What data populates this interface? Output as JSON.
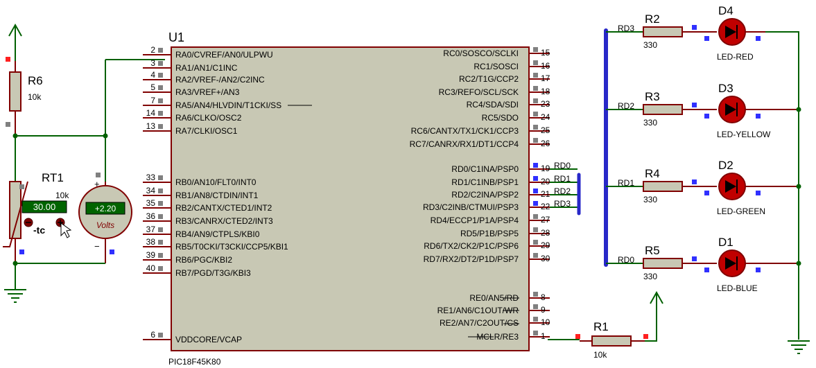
{
  "mcu": {
    "ref": "U1",
    "part": "PIC18F45K80",
    "left_pins": [
      {
        "num": "2",
        "name": "RA0/CVREF/AN0/ULPWU"
      },
      {
        "num": "3",
        "name": "RA1/AN1/C1INC"
      },
      {
        "num": "4",
        "name": "RA2/VREF-/AN2/C2INC"
      },
      {
        "num": "5",
        "name": "RA3/VREF+/AN3"
      },
      {
        "num": "7",
        "name": "RA5/AN4/HLVDIN/T1CKI/SS"
      },
      {
        "num": "14",
        "name": "RA6/CLKO/OSC2"
      },
      {
        "num": "13",
        "name": "RA7/CLKI/OSC1"
      },
      {
        "num": "33",
        "name": "RB0/AN10/FLT0/INT0"
      },
      {
        "num": "34",
        "name": "RB1/AN8/CTDIN/INT1"
      },
      {
        "num": "35",
        "name": "RB2/CANTX/CTED1/INT2"
      },
      {
        "num": "36",
        "name": "RB3/CANRX/CTED2/INT3"
      },
      {
        "num": "37",
        "name": "RB4/AN9/CTPLS/KBI0"
      },
      {
        "num": "38",
        "name": "RB5/T0CKI/T3CKI/CCP5/KBI1"
      },
      {
        "num": "39",
        "name": "RB6/PGC/KBI2"
      },
      {
        "num": "40",
        "name": "RB7/PGD/T3G/KBI3"
      },
      {
        "num": "6",
        "name": "VDDCORE/VCAP"
      }
    ],
    "right_pins": [
      {
        "num": "15",
        "name": "RC0/SOSCO/SCLKI"
      },
      {
        "num": "16",
        "name": "RC1/SOSCI"
      },
      {
        "num": "17",
        "name": "RC2/T1G/CCP2"
      },
      {
        "num": "18",
        "name": "RC3/REFO/SCL/SCK"
      },
      {
        "num": "23",
        "name": "RC4/SDA/SDI"
      },
      {
        "num": "24",
        "name": "RC5/SDO"
      },
      {
        "num": "25",
        "name": "RC6/CANTX/TX1/CK1/CCP3"
      },
      {
        "num": "26",
        "name": "RC7/CANRX/RX1/DT1/CCP4"
      },
      {
        "num": "19",
        "name": "RD0/C1INA/PSP0"
      },
      {
        "num": "20",
        "name": "RD1/C1INB/PSP1"
      },
      {
        "num": "21",
        "name": "RD2/C2INA/PSP2"
      },
      {
        "num": "22",
        "name": "RD3/C2INB/CTMUI/PSP3"
      },
      {
        "num": "27",
        "name": "RD4/ECCP1/P1A/PSP4"
      },
      {
        "num": "28",
        "name": "RD5/P1B/PSP5"
      },
      {
        "num": "29",
        "name": "RD6/TX2/CK2/P1C/PSP6"
      },
      {
        "num": "30",
        "name": "RD7/RX2/DT2/P1D/PSP7"
      },
      {
        "num": "8",
        "name": "RE0/AN5/RD"
      },
      {
        "num": "9",
        "name": "RE1/AN6/C1OUT/WR"
      },
      {
        "num": "10",
        "name": "RE2/AN7/C2OUT/CS"
      },
      {
        "num": "1",
        "name": "MCLR/RE3"
      }
    ],
    "rd_net_labels": [
      "RD0",
      "RD1",
      "RD2",
      "RD3"
    ]
  },
  "r6": {
    "ref": "R6",
    "value": "10k"
  },
  "rt1": {
    "ref": "RT1",
    "value": "10k",
    "temp": "30.00",
    "coeff": "-tc"
  },
  "voltmeter": {
    "reading": "+2.20",
    "unit": "Volts",
    "plus": "+",
    "minus": "−"
  },
  "r1": {
    "ref": "R1",
    "value": "10k"
  },
  "resistors": [
    {
      "ref": "R2",
      "value": "330",
      "net": "RD3"
    },
    {
      "ref": "R3",
      "value": "330",
      "net": "RD2"
    },
    {
      "ref": "R4",
      "value": "330",
      "net": "RD1"
    },
    {
      "ref": "R5",
      "value": "330",
      "net": "RD0"
    }
  ],
  "leds": [
    {
      "ref": "D4",
      "part": "LED-RED"
    },
    {
      "ref": "D3",
      "part": "LED-YELLOW"
    },
    {
      "ref": "D2",
      "part": "LED-GREEN"
    },
    {
      "ref": "D1",
      "part": "LED-BLUE"
    }
  ],
  "colors": {
    "wire": "#006000",
    "chip_body": "#c8c8b4",
    "chip_border": "#800000",
    "bus": "#2828c8",
    "resistor_body": "#c8c8b4",
    "led_body": "#c00000",
    "meter_body": "#c8c8b4",
    "display_bg": "#006400",
    "display_text": "#ffffff",
    "pin_marker_grey": "#808080",
    "pin_marker_blue": "#3030ff",
    "pin_marker_red": "#ff2020"
  }
}
